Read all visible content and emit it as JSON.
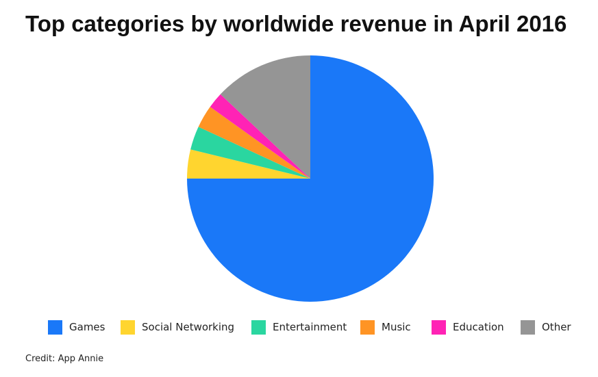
{
  "header": {
    "title": "Top categories by worldwide revenue in April 2016"
  },
  "chart_data": {
    "type": "pie",
    "title": "Top categories by worldwide revenue in April 2016",
    "categories": [
      "Games",
      "Social Networking",
      "Entertainment",
      "Music",
      "Education",
      "Other"
    ],
    "values": [
      75,
      3.8,
      3.1,
      3.0,
      2.1,
      13
    ],
    "unit": "percent of worldwide revenue (estimated)",
    "colors": [
      "#1A78F8",
      "#FFD52F",
      "#2AD6A0",
      "#FF9424",
      "#FF23B5",
      "#959595"
    ],
    "start": "12 o'clock",
    "direction": "clockwise",
    "legend_position": "bottom"
  },
  "footer": {
    "credit": "Credit: App Annie"
  }
}
